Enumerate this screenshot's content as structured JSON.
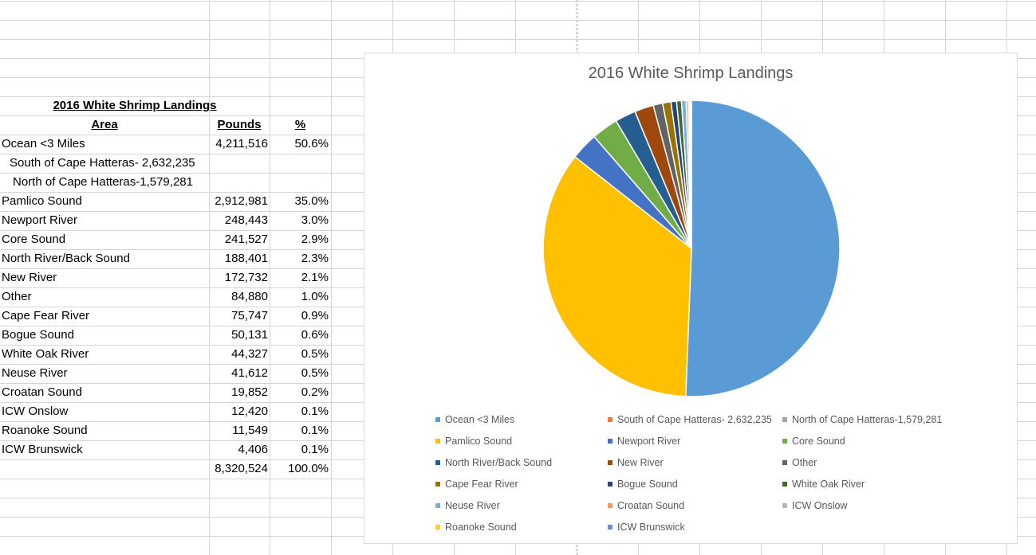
{
  "table": {
    "title": "2016 White Shrimp Landings",
    "headers": {
      "area": "Area",
      "pounds": "Pounds",
      "pct": "%"
    },
    "rows": [
      {
        "area": "Ocean <3 Miles",
        "pounds": "4,211,516",
        "pct": "50.6%"
      },
      {
        "area": "South of Cape Hatteras- 2,632,235",
        "pounds": "",
        "pct": ""
      },
      {
        "area": "North of Cape Hatteras-1,579,281",
        "pounds": "",
        "pct": ""
      },
      {
        "area": "Pamlico Sound",
        "pounds": "2,912,981",
        "pct": "35.0%"
      },
      {
        "area": "Newport River",
        "pounds": "248,443",
        "pct": "3.0%"
      },
      {
        "area": "Core Sound",
        "pounds": "241,527",
        "pct": "2.9%"
      },
      {
        "area": "North River/Back Sound",
        "pounds": "188,401",
        "pct": "2.3%"
      },
      {
        "area": "New River",
        "pounds": "172,732",
        "pct": "2.1%"
      },
      {
        "area": "Other",
        "pounds": "84,880",
        "pct": "1.0%"
      },
      {
        "area": "Cape Fear River",
        "pounds": "75,747",
        "pct": "0.9%"
      },
      {
        "area": "Bogue Sound",
        "pounds": "50,131",
        "pct": "0.6%"
      },
      {
        "area": "White Oak River",
        "pounds": "44,327",
        "pct": "0.5%"
      },
      {
        "area": "Neuse River",
        "pounds": "41,612",
        "pct": "0.5%"
      },
      {
        "area": "Croatan Sound",
        "pounds": "19,852",
        "pct": "0.2%"
      },
      {
        "area": "ICW Onslow",
        "pounds": "12,420",
        "pct": "0.1%"
      },
      {
        "area": "Roanoke Sound",
        "pounds": "11,549",
        "pct": "0.1%"
      },
      {
        "area": "ICW Brunswick",
        "pounds": "4,406",
        "pct": "0.1%"
      }
    ],
    "total": {
      "pounds": "8,320,524",
      "pct": "100.0%"
    }
  },
  "chart_data": {
    "type": "pie",
    "title": "2016 White Shrimp Landings",
    "categories": [
      "Ocean <3 Miles",
      "South of Cape Hatteras- 2,632,235",
      "North of Cape Hatteras-1,579,281",
      "Pamlico Sound",
      "Newport River",
      "Core Sound",
      "North River/Back Sound",
      "New River",
      "Other",
      "Cape Fear River",
      "Bogue Sound",
      "White Oak River",
      "Neuse River",
      "Croatan Sound",
      "ICW Onslow",
      "Roanoke Sound",
      "ICW Brunswick"
    ],
    "values": [
      4211516,
      0,
      0,
      2912981,
      248443,
      241527,
      188401,
      172732,
      84880,
      75747,
      50131,
      44327,
      41612,
      19852,
      12420,
      11549,
      4406
    ],
    "colors": [
      "#5b9bd5",
      "#ed7d31",
      "#a5a5a5",
      "#ffc000",
      "#4472c4",
      "#70ad47",
      "#255e91",
      "#9e480e",
      "#636363",
      "#997300",
      "#264478",
      "#43682b",
      "#7cafdd",
      "#f1975a",
      "#b7b7b7",
      "#ffcd33",
      "#698ed0"
    ],
    "legend_position": "bottom",
    "slice_border_color": "#ffffff"
  }
}
